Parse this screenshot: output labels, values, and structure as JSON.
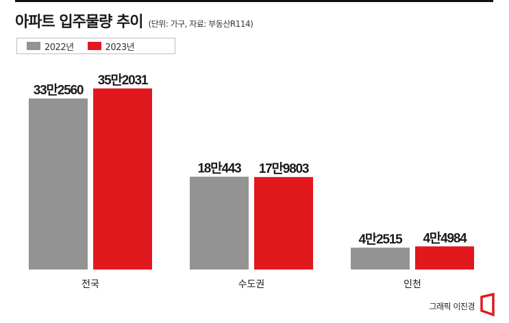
{
  "header": {
    "title": "아파트 입주물량 추이",
    "subtitle": "(단위: 가구, 자료: 부동산R114)"
  },
  "colors": {
    "series_2022": "#939393",
    "series_2023": "#e2181f",
    "text": "#1a1a1a"
  },
  "chart_data": {
    "type": "bar",
    "title": "아파트 입주물량 추이",
    "subtitle": "(단위: 가구, 자료: 부동산R114)",
    "categories": [
      "전국",
      "수도권",
      "인천"
    ],
    "series": [
      {
        "name": "2022년",
        "values": [
          332560,
          180443,
          42515
        ],
        "labels": [
          "33만2560",
          "18만443",
          "4만2515"
        ]
      },
      {
        "name": "2023년",
        "values": [
          352031,
          179803,
          44984
        ],
        "labels": [
          "35만2031",
          "17만9803",
          "4만4984"
        ]
      }
    ],
    "legend_position": "top-left",
    "grid": false,
    "ylim": [
      0,
      380000
    ]
  },
  "footer": {
    "credit": "그래픽 이진경",
    "logo_icon": "publisher-logo-icon"
  }
}
